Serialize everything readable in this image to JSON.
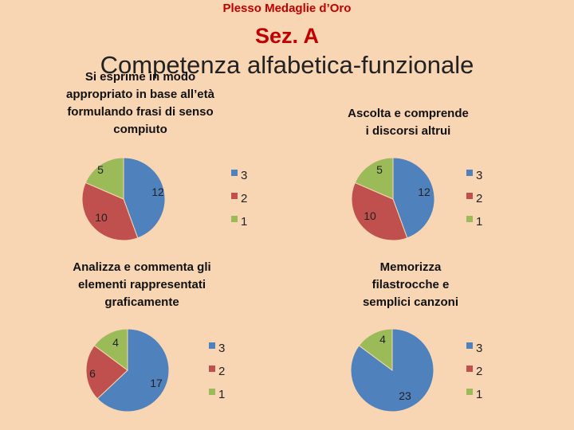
{
  "header": {
    "plesso": "Plesso Medaglie d’Oro",
    "section": "Sez. A",
    "competence": "Competenza alfabetica-funzionale"
  },
  "colors": {
    "3": "#4f81bd",
    "2": "#c0504d",
    "1": "#9bbb59"
  },
  "chart_data": [
    {
      "type": "pie",
      "title": "Si esprime in modo\nappropriato in base all’età\nformulando frasi di senso\ncompiuto",
      "categories": [
        "3",
        "2",
        "1"
      ],
      "values": [
        12,
        10,
        5
      ],
      "legend": "right"
    },
    {
      "type": "pie",
      "title": "Ascolta e comprende\ni discorsi altrui",
      "categories": [
        "3",
        "2",
        "1"
      ],
      "values": [
        12,
        10,
        5
      ],
      "legend": "right"
    },
    {
      "type": "pie",
      "title": "Analizza e commenta gli\nelementi rappresentati\ngraficamente",
      "categories": [
        "3",
        "2",
        "1"
      ],
      "values": [
        17,
        6,
        4
      ],
      "legend": "right"
    },
    {
      "type": "pie",
      "title": "Memorizza\nfilastrocche e\nsemplici canzoni",
      "categories": [
        "3",
        "2",
        "1"
      ],
      "values": [
        23,
        0,
        4
      ],
      "legend": "right"
    }
  ]
}
